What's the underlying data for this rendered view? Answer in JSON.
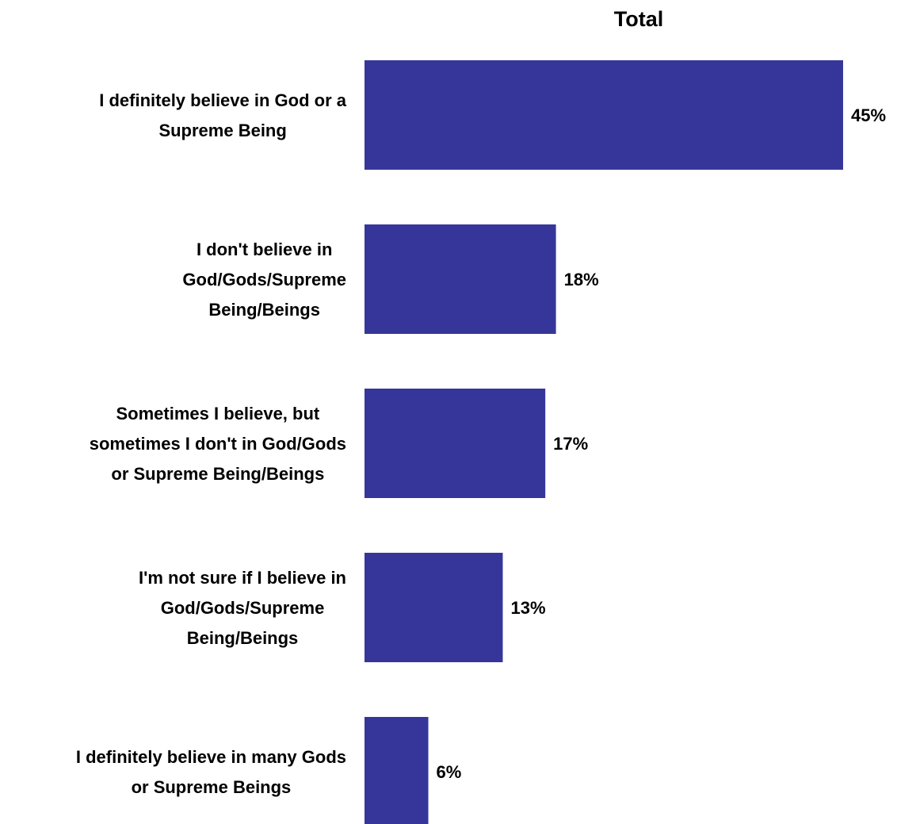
{
  "chart_data": {
    "type": "bar",
    "orientation": "horizontal",
    "title": "Total",
    "xlabel": "",
    "ylabel": "",
    "xlim": [
      0,
      45
    ],
    "grid": false,
    "legend": "none",
    "bar_color": "#36369A",
    "categories": [
      "I definitely believe in God or a Supreme Being",
      "I don't believe in God/Gods/Supreme Being/Beings",
      "Sometimes I believe, but sometimes I don't in God/Gods or Supreme Being/Beings",
      "I'm not sure if I believe in God/Gods/Supreme Being/Beings",
      "I definitely believe in many Gods or Supreme Beings"
    ],
    "category_label_lines": [
      [
        "I definitely believe in God or a",
        "Supreme Being"
      ],
      [
        "I don't believe in",
        "God/Gods/Supreme",
        "Being/Beings"
      ],
      [
        "Sometimes I believe, but",
        "sometimes I don't in God/Gods",
        "or Supreme Being/Beings"
      ],
      [
        "I'm not sure if I believe in",
        "God/Gods/Supreme",
        "Being/Beings"
      ],
      [
        "I definitely believe in many Gods",
        "or Supreme Beings"
      ]
    ],
    "values": [
      45,
      18,
      17,
      13,
      6
    ],
    "data_labels": [
      "45%",
      "18%",
      "17%",
      "13%",
      "6%"
    ]
  }
}
